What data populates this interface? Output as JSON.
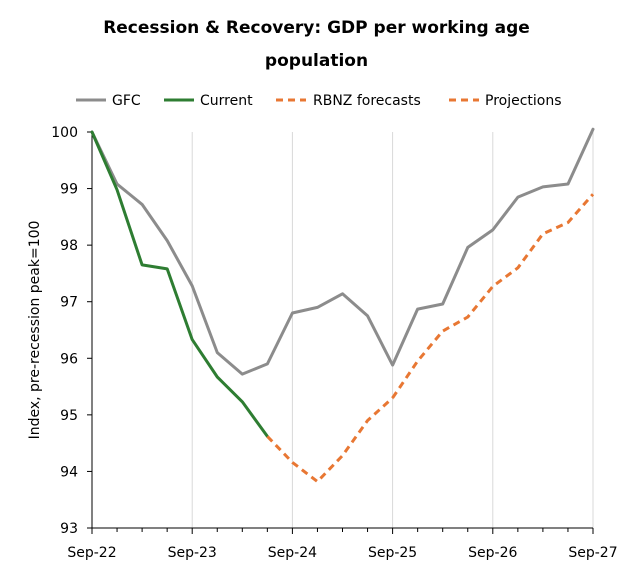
{
  "chart_data": {
    "type": "line",
    "title_line1": "Recession & Recovery: GDP per working age",
    "title_line2": "population",
    "ylabel": "Index, pre-recession peak=100",
    "xlabel": "",
    "ylim": [
      93,
      100
    ],
    "yticks": [
      93,
      94,
      95,
      96,
      97,
      98,
      99,
      100
    ],
    "xticks": [
      "Sep-22",
      "Sep-23",
      "Sep-24",
      "Sep-25",
      "Sep-26",
      "Sep-27"
    ],
    "x_periods": 20,
    "grid": "vertical",
    "legend_position": "top",
    "series": [
      {
        "name": "GFC",
        "color": "#8c8c8c",
        "style": "solid",
        "x": [
          0,
          1,
          2,
          3,
          4,
          5,
          6,
          7,
          8,
          9,
          10,
          11,
          12,
          13,
          14,
          15,
          16,
          17,
          18,
          19,
          20
        ],
        "values": [
          100,
          99.08,
          98.72,
          98.08,
          97.28,
          96.1,
          95.72,
          95.9,
          96.8,
          96.9,
          97.14,
          96.75,
          95.88,
          96.87,
          96.96,
          97.96,
          98.27,
          98.85,
          99.03,
          99.08,
          100.05
        ]
      },
      {
        "name": "Current",
        "color": "#2e7d32",
        "style": "solid",
        "x": [
          0,
          1,
          2,
          3,
          4,
          5,
          6,
          7
        ],
        "values": [
          100,
          98.98,
          97.65,
          97.58,
          96.33,
          95.67,
          95.23,
          94.62
        ]
      },
      {
        "name": "RBNZ forecasts",
        "color": "#e87733",
        "style": "dashed",
        "x": [
          7,
          8,
          9,
          10,
          11,
          12
        ],
        "values": [
          94.62,
          94.16,
          93.82,
          94.28,
          94.9,
          95.3
        ]
      },
      {
        "name": "Projections",
        "color": "#e87733",
        "style": "dashed",
        "x": [
          12,
          13,
          14,
          15,
          16,
          17,
          18,
          19,
          20
        ],
        "values": [
          95.3,
          95.95,
          96.48,
          96.73,
          97.27,
          97.6,
          98.2,
          98.4,
          98.9
        ]
      }
    ]
  }
}
